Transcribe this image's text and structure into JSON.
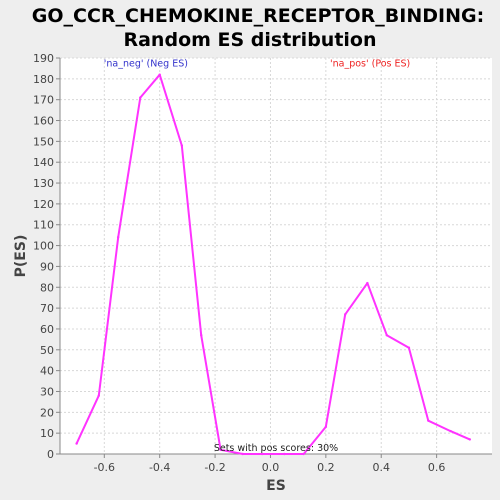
{
  "chart_data": {
    "type": "line",
    "title_line1": "GO_CCR_CHEMOKINE_RECEPTOR_BINDING:",
    "title_line2": "Random ES distribution",
    "xlabel": "ES",
    "ylabel": "P(ES)",
    "xlim": [
      -0.76,
      0.8
    ],
    "ylim": [
      0,
      190
    ],
    "xticks": [
      -0.6,
      -0.4,
      -0.2,
      0.0,
      0.2,
      0.4,
      0.6
    ],
    "xtick_labels": [
      "-0.6",
      "-0.4",
      "-0.2",
      "0.0",
      "0.2",
      "0.4",
      "0.6"
    ],
    "yticks": [
      0,
      10,
      20,
      30,
      40,
      50,
      60,
      70,
      80,
      90,
      100,
      110,
      120,
      130,
      140,
      150,
      160,
      170,
      180,
      190
    ],
    "grid": true,
    "series": [
      {
        "color": "#ff33ff",
        "x": [
          -0.7,
          -0.62,
          -0.55,
          -0.47,
          -0.4,
          -0.32,
          -0.25,
          -0.18,
          -0.1,
          -0.03,
          0.05,
          0.12,
          0.2,
          0.27,
          0.35,
          0.42,
          0.5,
          0.57,
          0.65,
          0.72
        ],
        "y": [
          5,
          28,
          104,
          171,
          182,
          148,
          57,
          2,
          0,
          0,
          0,
          0,
          13,
          67,
          82,
          57,
          51,
          16,
          11,
          7
        ]
      }
    ],
    "annotations": [
      {
        "text": "'na_neg' (Neg ES)",
        "color": "#3333cc",
        "x": -0.45,
        "y": 185
      },
      {
        "text": "'na_pos' (Pos ES)",
        "color": "#ee2222",
        "x": 0.36,
        "y": 185
      },
      {
        "text": "Sets with pos scores: 30%",
        "color": "#222222",
        "x": 0.02,
        "y": 0.5
      }
    ]
  }
}
